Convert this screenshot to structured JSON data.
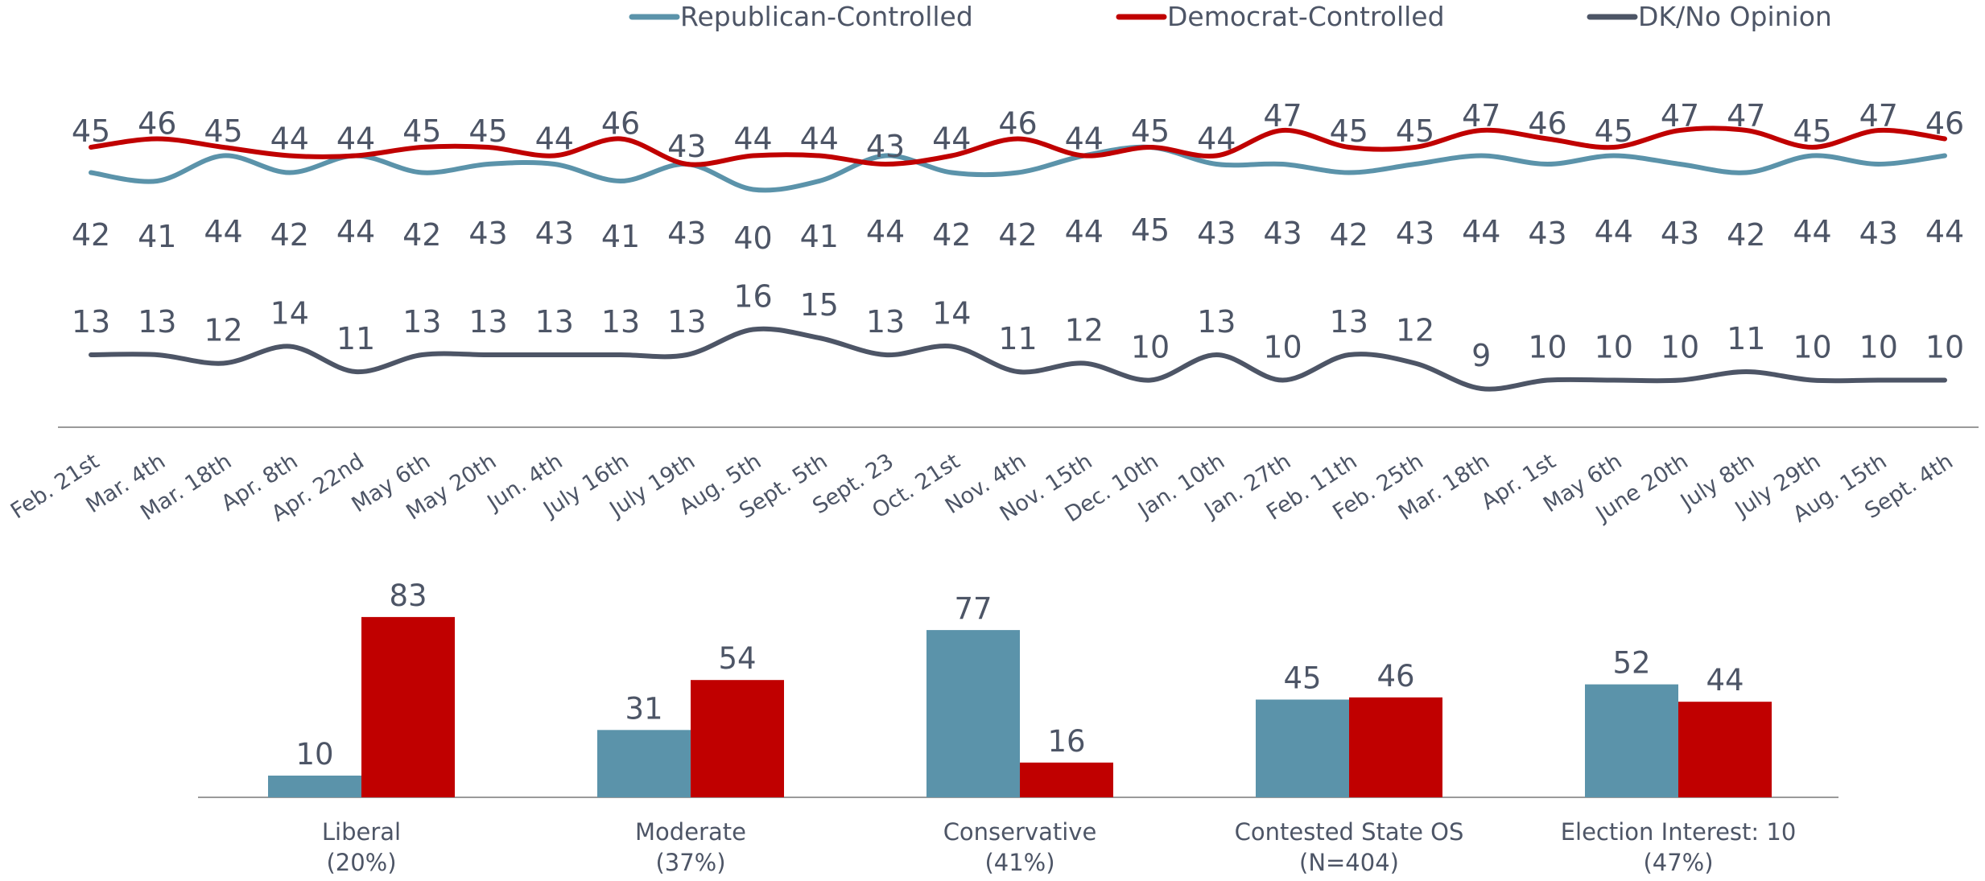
{
  "chart_data": [
    {
      "type": "line",
      "legend_position": "top",
      "grid": false,
      "x": [
        "Feb. 21st",
        "Mar. 4th",
        "Mar. 18th",
        "Apr. 8th",
        "Apr. 22nd",
        "May 6th",
        "May 20th",
        "Jun. 4th",
        "July 16th",
        "July 19th",
        "Aug. 5th",
        "Sept. 5th",
        "Sept. 23",
        "Oct. 21st",
        "Nov. 4th",
        "Nov. 15th",
        "Dec. 10th",
        "Jan. 10th",
        "Jan. 27th",
        "Feb. 11th",
        "Feb. 25th",
        "Mar. 18th",
        "Apr. 1st",
        "May 6th",
        "June 20th",
        "July 8th",
        "July 29th",
        "Aug. 15th",
        "Sept. 4th"
      ],
      "series": [
        {
          "name": "Republican-Controlled",
          "color": "#5b93aa",
          "values": [
            42,
            41,
            44,
            42,
            44,
            42,
            43,
            43,
            41,
            43,
            40,
            41,
            44,
            42,
            42,
            44,
            45,
            43,
            43,
            42,
            43,
            44,
            43,
            44,
            43,
            42,
            44,
            43,
            44
          ]
        },
        {
          "name": "Democrat-Controlled",
          "color": "#c00000",
          "values": [
            45,
            46,
            45,
            44,
            44,
            45,
            45,
            44,
            46,
            43,
            44,
            44,
            43,
            44,
            46,
            44,
            45,
            44,
            47,
            45,
            45,
            47,
            46,
            45,
            47,
            47,
            45,
            47,
            46
          ]
        },
        {
          "name": "DK/No Opinion",
          "color": "#4d5566",
          "values": [
            13,
            13,
            12,
            14,
            11,
            13,
            13,
            13,
            13,
            13,
            16,
            15,
            13,
            14,
            11,
            12,
            10,
            13,
            10,
            13,
            12,
            9,
            10,
            10,
            10,
            11,
            10,
            10,
            10
          ]
        }
      ]
    },
    {
      "type": "bar",
      "categories": [
        {
          "name": "Liberal",
          "sub": "(20%)"
        },
        {
          "name": "Moderate",
          "sub": "(37%)"
        },
        {
          "name": "Conservative",
          "sub": "(41%)"
        },
        {
          "name": "Contested State OS",
          "sub": "(N=404)"
        },
        {
          "name": "Election Interest: 10",
          "sub": "(47%)"
        }
      ],
      "series": [
        {
          "name": "Republican-Controlled",
          "color": "#5b93aa",
          "values": [
            10,
            31,
            77,
            45,
            52
          ]
        },
        {
          "name": "Democrat-Controlled",
          "color": "#c00000",
          "values": [
            83,
            54,
            16,
            46,
            44
          ]
        }
      ],
      "ylim": [
        0,
        90
      ]
    }
  ]
}
